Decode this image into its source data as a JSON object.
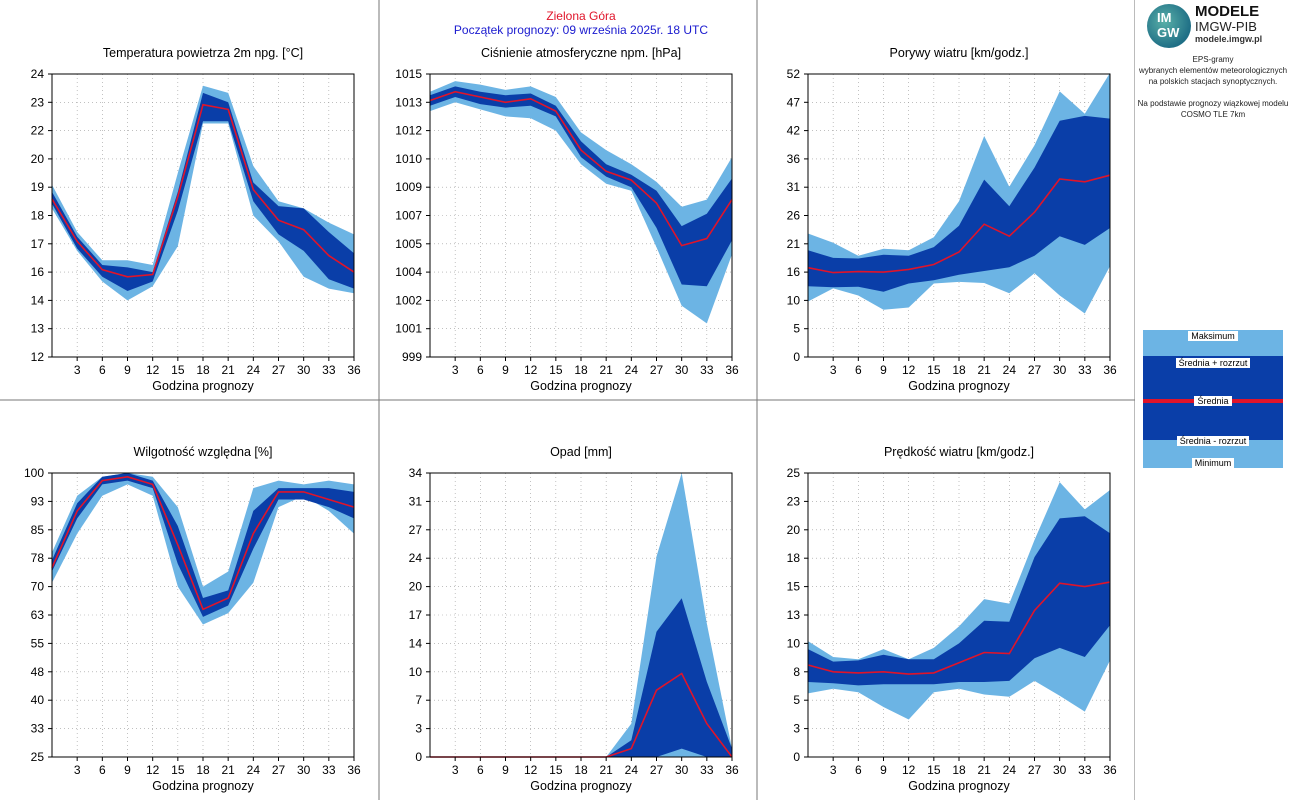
{
  "header": {
    "station": "Zielona Góra",
    "forecast_start": "Początek prognozy: 09 września 2025r. 18 UTC"
  },
  "brand": {
    "logo_letters_top": "IM",
    "logo_letters_bottom": "GW",
    "title": "MODELE",
    "subtitle": "IMGW-PIB",
    "url": "modele.imgw.pl"
  },
  "info": {
    "line1": "EPS-gramy",
    "line2": "wybranych elementów meteorologicznych",
    "line3": "na polskich stacjach  synoptycznych.",
    "line4": "Na podstawie prognozy wiązkowej modelu",
    "line5": "COSMO TLE 7km"
  },
  "legend": {
    "max": "Maksimum",
    "mean_plus": "Średnia + rozrzut",
    "mean": "Średnia",
    "mean_minus": "Średnia - rozrzut",
    "min": "Minimum"
  },
  "colors": {
    "outer_band": "#6cb4e4",
    "inner_band": "#0a3ea8",
    "mean_line": "#e0142a",
    "station_title": "#e0142a",
    "forecast_title": "#1a1acf"
  },
  "chart_data": [
    {
      "id": "temp",
      "type": "area",
      "title": "Temperatura powietrza 2m npg. [°C]",
      "xlabel": "Godzina prognozy",
      "ylabel": "",
      "y_unit": "°C",
      "xticks": [
        "3",
        "6",
        "9",
        "12",
        "15",
        "18",
        "21",
        "24",
        "27",
        "30",
        "33",
        "36"
      ],
      "yticks": [
        "12",
        "13",
        "14",
        "16",
        "17",
        "18",
        "19",
        "20",
        "22",
        "23",
        "24"
      ],
      "ylim": [
        12,
        24
      ],
      "xlim": [
        0,
        36
      ],
      "x": [
        0,
        3,
        6,
        9,
        12,
        15,
        18,
        21,
        24,
        27,
        30,
        33,
        36
      ],
      "max": [
        19.3,
        17.3,
        16.1,
        16.1,
        15.9,
        19.8,
        23.5,
        23.2,
        20.1,
        18.6,
        18.3,
        17.7,
        17.2
      ],
      "mean_plus": [
        19.0,
        17.1,
        15.9,
        15.8,
        15.6,
        19.0,
        23.2,
        22.8,
        19.4,
        18.4,
        18.3,
        17.3,
        16.4
      ],
      "mean": [
        18.7,
        16.9,
        15.7,
        15.4,
        15.5,
        18.8,
        22.7,
        22.5,
        19.1,
        17.8,
        17.4,
        16.3,
        15.6
      ],
      "mean_minus": [
        18.5,
        16.6,
        15.4,
        14.8,
        15.2,
        18.2,
        22.0,
        22.0,
        18.6,
        17.2,
        16.5,
        15.3,
        14.9
      ],
      "min": [
        18.3,
        16.5,
        15.2,
        14.4,
        15.0,
        16.7,
        21.9,
        21.9,
        18.0,
        16.9,
        15.4,
        14.9,
        14.7
      ]
    },
    {
      "id": "pressure",
      "type": "area",
      "title": "Ciśnienie atmosferyczne npm. [hPa]",
      "xlabel": "Godzina prognozy",
      "ylabel": "",
      "y_unit": "hPa",
      "xticks": [
        "3",
        "6",
        "9",
        "12",
        "15",
        "18",
        "21",
        "24",
        "27",
        "30",
        "33",
        "36"
      ],
      "yticks": [
        "999",
        "1001",
        "1002",
        "1004",
        "1005",
        "1007",
        "1009",
        "1010",
        "1012",
        "1013",
        "1015"
      ],
      "ylim": [
        999,
        1015
      ],
      "xlim": [
        0,
        36
      ],
      "x": [
        0,
        3,
        6,
        9,
        12,
        15,
        18,
        21,
        24,
        27,
        30,
        33,
        36
      ],
      "max": [
        1014.0,
        1014.6,
        1014.4,
        1014.1,
        1014.3,
        1013.7,
        1011.7,
        1010.7,
        1009.9,
        1008.9,
        1007.5,
        1007.9,
        1010.3
      ],
      "mean_plus": [
        1013.8,
        1014.3,
        1014.0,
        1013.8,
        1013.9,
        1013.2,
        1011.2,
        1009.9,
        1009.3,
        1008.4,
        1006.4,
        1007.1,
        1009.1
      ],
      "mean": [
        1013.5,
        1014.0,
        1013.7,
        1013.4,
        1013.6,
        1012.9,
        1010.7,
        1009.5,
        1009.0,
        1007.7,
        1005.3,
        1005.7,
        1007.9
      ],
      "mean_minus": [
        1013.2,
        1013.7,
        1013.3,
        1013.1,
        1013.2,
        1012.6,
        1010.3,
        1009.2,
        1008.6,
        1006.3,
        1003.1,
        1003.0,
        1005.6
      ],
      "min": [
        1012.9,
        1013.4,
        1013.0,
        1012.6,
        1012.5,
        1011.8,
        1009.9,
        1008.8,
        1008.4,
        1005.2,
        1001.9,
        1000.9,
        1004.8
      ]
    },
    {
      "id": "gusts",
      "type": "area",
      "title": "Porywy wiatru [km/godz.]",
      "xlabel": "Godzina prognozy",
      "ylabel": "",
      "y_unit": "km/godz.",
      "xticks": [
        "3",
        "6",
        "9",
        "12",
        "15",
        "18",
        "21",
        "24",
        "27",
        "30",
        "33",
        "36"
      ],
      "yticks": [
        "0",
        "5",
        "10",
        "16",
        "21",
        "26",
        "31",
        "36",
        "42",
        "47",
        "52"
      ],
      "ylim": [
        0,
        52
      ],
      "xlim": [
        0,
        36
      ],
      "x": [
        0,
        3,
        6,
        9,
        12,
        15,
        18,
        21,
        24,
        27,
        30,
        33,
        36
      ],
      "max": [
        22.7,
        21.0,
        18.6,
        19.9,
        19.6,
        22.0,
        28.6,
        40.6,
        31.3,
        38.9,
        48.8,
        44.7,
        52.2
      ],
      "mean_plus": [
        19.6,
        18.2,
        18.1,
        18.8,
        18.6,
        20.2,
        24.1,
        32.6,
        27.7,
        34.8,
        43.4,
        44.3,
        43.8
      ],
      "mean": [
        16.4,
        15.5,
        15.7,
        15.6,
        16.1,
        17.0,
        19.3,
        24.4,
        22.2,
        26.6,
        32.7,
        32.2,
        33.4
      ],
      "mean_minus": [
        13.0,
        12.8,
        12.9,
        12.0,
        13.5,
        14.1,
        15.1,
        15.8,
        16.5,
        18.6,
        22.2,
        20.6,
        23.7
      ],
      "min": [
        10.2,
        12.6,
        11.3,
        8.7,
        9.1,
        13.5,
        13.8,
        13.6,
        11.7,
        15.4,
        11.3,
        8.0,
        16.7
      ]
    },
    {
      "id": "humidity",
      "type": "area",
      "title": "Wilgotność względna [%]",
      "xlabel": "Godzina prognozy",
      "ylabel": "",
      "y_unit": "%",
      "xticks": [
        "3",
        "6",
        "9",
        "12",
        "15",
        "18",
        "21",
        "24",
        "27",
        "30",
        "33",
        "36"
      ],
      "yticks": [
        "25",
        "33",
        "40",
        "48",
        "55",
        "63",
        "70",
        "78",
        "85",
        "93",
        "100"
      ],
      "ylim": [
        25,
        100
      ],
      "xlim": [
        0,
        36
      ],
      "x": [
        0,
        3,
        6,
        9,
        12,
        15,
        18,
        21,
        24,
        27,
        30,
        33,
        36
      ],
      "max": [
        79,
        94,
        99,
        100,
        99,
        91,
        70,
        74,
        96,
        98,
        97,
        98,
        97
      ],
      "mean_plus": [
        77,
        92,
        99,
        100,
        98,
        86,
        67,
        69,
        90,
        96,
        96,
        96,
        95
      ],
      "mean": [
        75,
        90,
        98,
        99,
        97,
        81,
        64,
        67,
        84,
        95,
        95,
        93,
        91
      ],
      "mean_minus": [
        74,
        88,
        97,
        98,
        96,
        76,
        62,
        65,
        80,
        93,
        93,
        91,
        88
      ],
      "min": [
        71,
        84,
        94,
        97,
        94,
        70,
        60,
        63,
        71,
        91,
        94,
        90,
        84
      ]
    },
    {
      "id": "precip",
      "type": "area",
      "title": "Opad [mm]",
      "xlabel": "Godzina prognozy",
      "ylabel": "",
      "y_unit": "mm",
      "xticks": [
        "3",
        "6",
        "9",
        "12",
        "15",
        "18",
        "21",
        "24",
        "27",
        "30",
        "33",
        "36"
      ],
      "yticks": [
        "0",
        "3",
        "7",
        "10",
        "14",
        "17",
        "20",
        "24",
        "27",
        "31",
        "34"
      ],
      "ylim": [
        0,
        34
      ],
      "xlim": [
        0,
        36
      ],
      "x": [
        0,
        3,
        6,
        9,
        12,
        15,
        18,
        21,
        24,
        27,
        30,
        33,
        36
      ],
      "max": [
        0,
        0,
        0,
        0,
        0,
        0,
        0,
        0,
        4,
        24,
        34,
        16,
        1
      ],
      "mean_plus": [
        0,
        0,
        0,
        0,
        0,
        0,
        0,
        0,
        2,
        15,
        19,
        9,
        1
      ],
      "mean": [
        0,
        0,
        0,
        0,
        0,
        0,
        0,
        0,
        1,
        8,
        10,
        4,
        0
      ],
      "mean_minus": [
        0,
        0,
        0,
        0,
        0,
        0,
        0,
        0,
        0,
        0,
        1,
        0,
        0
      ],
      "min": [
        0,
        0,
        0,
        0,
        0,
        0,
        0,
        0,
        0,
        0,
        0,
        0,
        0
      ]
    },
    {
      "id": "wind",
      "type": "area",
      "title": "Prędkość wiatru [km/godz.]",
      "xlabel": "Godzina prognozy",
      "ylabel": "",
      "y_unit": "km/godz.",
      "xticks": [
        "3",
        "6",
        "9",
        "12",
        "15",
        "18",
        "21",
        "24",
        "27",
        "30",
        "33",
        "36"
      ],
      "yticks": [
        "0",
        "3",
        "5",
        "8",
        "10",
        "13",
        "15",
        "18",
        "20",
        "23",
        "25"
      ],
      "ylim": [
        0,
        25
      ],
      "xlim": [
        0,
        36
      ],
      "x": [
        0,
        3,
        6,
        9,
        12,
        15,
        18,
        21,
        24,
        27,
        30,
        33,
        36
      ],
      "max": [
        10.2,
        8.8,
        8.6,
        9.5,
        8.6,
        9.6,
        11.5,
        13.9,
        13.5,
        19.1,
        24.2,
        21.8,
        23.5
      ],
      "mean_plus": [
        9.5,
        8.4,
        8.5,
        9.0,
        8.6,
        8.6,
        10.0,
        12.0,
        11.9,
        17.6,
        21.0,
        21.2,
        19.7
      ],
      "mean": [
        8.1,
        7.5,
        7.4,
        7.5,
        7.3,
        7.4,
        8.3,
        9.2,
        9.1,
        12.9,
        15.3,
        15.0,
        15.4
      ],
      "mean_minus": [
        6.6,
        6.5,
        6.3,
        6.4,
        6.4,
        6.4,
        6.6,
        6.6,
        6.7,
        8.7,
        9.6,
        8.8,
        11.6
      ],
      "min": [
        5.6,
        6.0,
        5.7,
        4.4,
        3.3,
        5.7,
        6.0,
        5.5,
        5.3,
        6.7,
        5.4,
        4.0,
        8.5
      ]
    }
  ]
}
